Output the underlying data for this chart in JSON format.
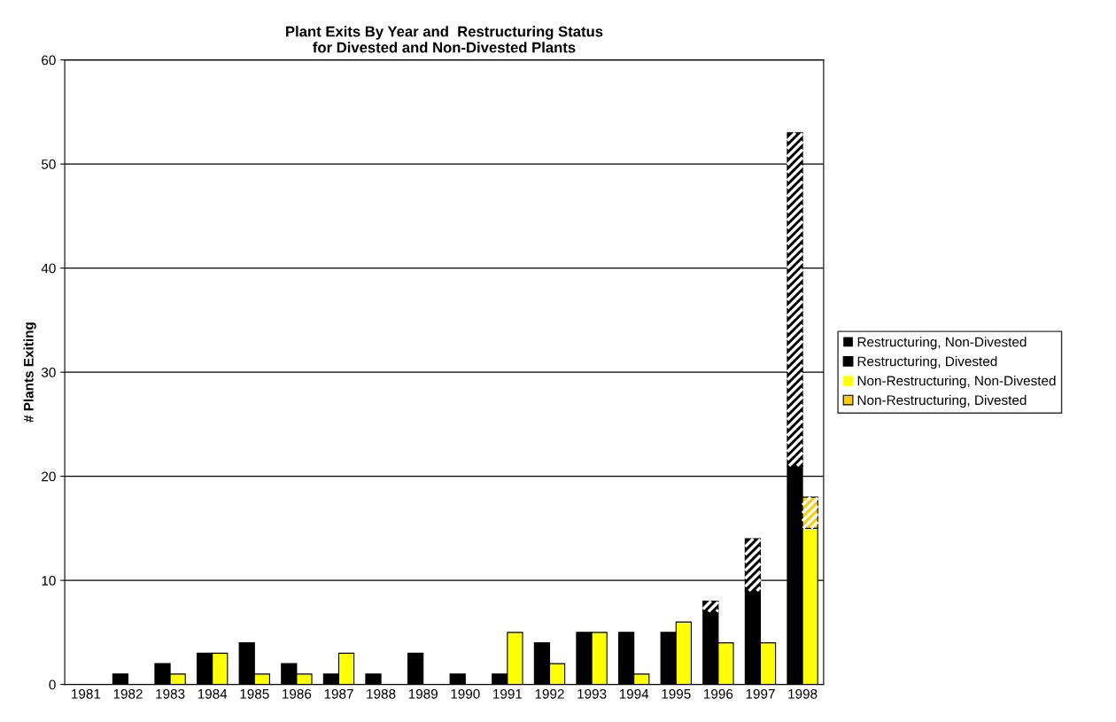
{
  "chart_data": {
    "type": "bar",
    "title": "Plant Exits By Year and  Restructuring Status\nfor Divested and Non-Divested Plants",
    "ylabel": "# Plants Exiting",
    "categories": [
      "1981",
      "1982",
      "1983",
      "1984",
      "1985",
      "1986",
      "1987",
      "1988",
      "1989",
      "1990",
      "1991",
      "1992",
      "1993",
      "1994",
      "1995",
      "1996",
      "1997",
      "1998"
    ],
    "series": [
      {
        "name": "Restructuring, Non-Divested",
        "color": "#000000",
        "values": [
          0,
          1,
          2,
          3,
          4,
          2,
          1,
          1,
          3,
          1,
          1,
          4,
          5,
          5,
          5,
          7,
          9,
          21
        ]
      },
      {
        "name": "Restructuring, Divested",
        "color": "#000000",
        "base": [
          null,
          null,
          null,
          null,
          null,
          null,
          null,
          null,
          null,
          null,
          null,
          null,
          null,
          null,
          null,
          7,
          9,
          21
        ],
        "values": [
          null,
          null,
          null,
          null,
          null,
          null,
          null,
          null,
          null,
          null,
          null,
          null,
          null,
          null,
          null,
          1,
          5,
          32
        ]
      },
      {
        "name": "Non-Restructuring, Non-Divested",
        "color": "#ffff00",
        "values": [
          0,
          0,
          1,
          3,
          1,
          1,
          3,
          0,
          0,
          0,
          5,
          2,
          5,
          1,
          6,
          4,
          4,
          15
        ]
      },
      {
        "name": "Non-Restructuring, Divested",
        "color": "#ffcc00",
        "base": [
          null,
          null,
          null,
          null,
          null,
          null,
          null,
          null,
          null,
          null,
          null,
          null,
          null,
          null,
          null,
          null,
          null,
          15
        ],
        "values": [
          null,
          null,
          null,
          null,
          null,
          null,
          null,
          null,
          null,
          null,
          null,
          null,
          null,
          null,
          null,
          null,
          null,
          3
        ]
      }
    ],
    "ylim": [
      0,
      60
    ],
    "yticks": [
      0,
      10,
      20,
      30,
      40,
      50,
      60
    ],
    "grid": "y",
    "legend": "right"
  }
}
